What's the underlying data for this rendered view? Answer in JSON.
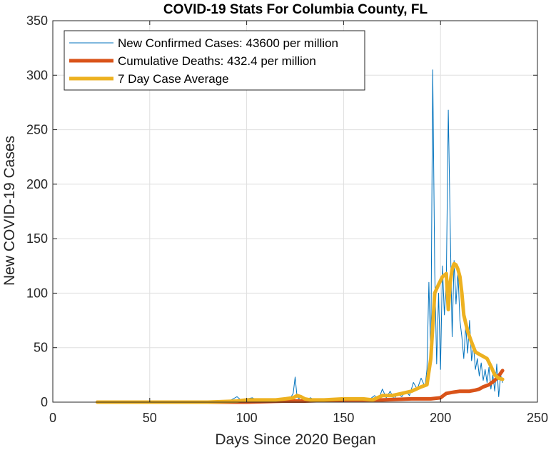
{
  "chart_data": {
    "type": "line",
    "title": "COVID-19 Stats For Columbia County, FL",
    "xlabel": "Days Since 2020 Began",
    "ylabel": "New COVID-19 Cases",
    "xlim": [
      0,
      250
    ],
    "ylim": [
      0,
      350
    ],
    "xticks": [
      0,
      50,
      100,
      150,
      200,
      250
    ],
    "yticks": [
      0,
      50,
      100,
      150,
      200,
      250,
      300,
      350
    ],
    "xtick_labels": [
      "0",
      "50",
      "100",
      "150",
      "200",
      "250"
    ],
    "ytick_labels": [
      "0",
      "50",
      "100",
      "150",
      "200",
      "250",
      "300",
      "350"
    ],
    "grid": true,
    "legend_position": "top-left",
    "colors": {
      "new_cases": "#0072BD",
      "deaths": "#D95319",
      "avg": "#EDB120",
      "grid": "#DFDFDF",
      "axis": "#262626"
    },
    "series": [
      {
        "name": "New Confirmed Cases: 43600 per million",
        "key": "new_cases",
        "x": [
          23,
          80,
          90,
          95,
          97,
          100,
          103,
          105,
          108,
          110,
          113,
          116,
          119,
          122,
          124,
          125,
          126,
          127,
          128,
          130,
          133,
          136,
          140,
          143,
          146,
          150,
          153,
          156,
          160,
          163,
          166,
          168,
          170,
          172,
          174,
          176,
          178,
          180,
          182,
          184,
          186,
          188,
          190,
          192,
          193,
          194,
          195,
          196,
          197,
          198,
          199,
          200,
          201,
          202,
          203,
          204,
          205,
          206,
          207,
          208,
          209,
          210,
          211,
          212,
          213,
          214,
          215,
          216,
          217,
          218,
          219,
          220,
          221,
          222,
          223,
          224,
          225,
          226,
          227,
          228,
          229,
          230,
          231,
          232
        ],
        "y": [
          0,
          0,
          0,
          5,
          2,
          3,
          4,
          2,
          3,
          1,
          2,
          3,
          1,
          2,
          8,
          23,
          5,
          3,
          6,
          2,
          4,
          1,
          3,
          2,
          3,
          2,
          4,
          1,
          3,
          2,
          6,
          2,
          12,
          4,
          10,
          3,
          8,
          5,
          10,
          6,
          18,
          12,
          22,
          14,
          30,
          110,
          40,
          305,
          120,
          35,
          100,
          30,
          125,
          80,
          110,
          268,
          160,
          60,
          130,
          90,
          120,
          75,
          60,
          40,
          70,
          45,
          75,
          38,
          52,
          30,
          40,
          24,
          36,
          20,
          30,
          18,
          32,
          12,
          25,
          10,
          35,
          5,
          25,
          18
        ]
      },
      {
        "name": "Cumulative Deaths: 432.4 per million",
        "key": "deaths",
        "x": [
          23,
          80,
          100,
          120,
          130,
          150,
          170,
          185,
          195,
          200,
          203,
          206,
          210,
          215,
          218,
          220,
          222,
          225,
          228,
          230,
          232
        ],
        "y": [
          0,
          0,
          0,
          1,
          1,
          2,
          2,
          3,
          3,
          4,
          8,
          9,
          10,
          10,
          11,
          12,
          14,
          16,
          20,
          24,
          29
        ]
      },
      {
        "name": "7 Day Case Average",
        "key": "avg",
        "x": [
          23,
          80,
          95,
          100,
          110,
          115,
          120,
          124,
          126,
          128,
          130,
          133,
          140,
          150,
          160,
          165,
          170,
          175,
          180,
          185,
          190,
          193,
          195,
          197,
          199,
          201,
          203,
          204,
          205,
          206,
          207,
          208,
          209,
          210,
          211,
          212,
          214,
          216,
          218,
          220,
          222,
          224,
          226,
          228,
          230,
          232
        ],
        "y": [
          0,
          0,
          1,
          2,
          2,
          2,
          3,
          4,
          6,
          5,
          3,
          2,
          2,
          3,
          3,
          2,
          6,
          6,
          8,
          10,
          14,
          16,
          40,
          100,
          108,
          115,
          118,
          85,
          110,
          122,
          127,
          126,
          122,
          115,
          100,
          80,
          65,
          55,
          46,
          44,
          42,
          40,
          33,
          25,
          22,
          21
        ]
      }
    ]
  }
}
